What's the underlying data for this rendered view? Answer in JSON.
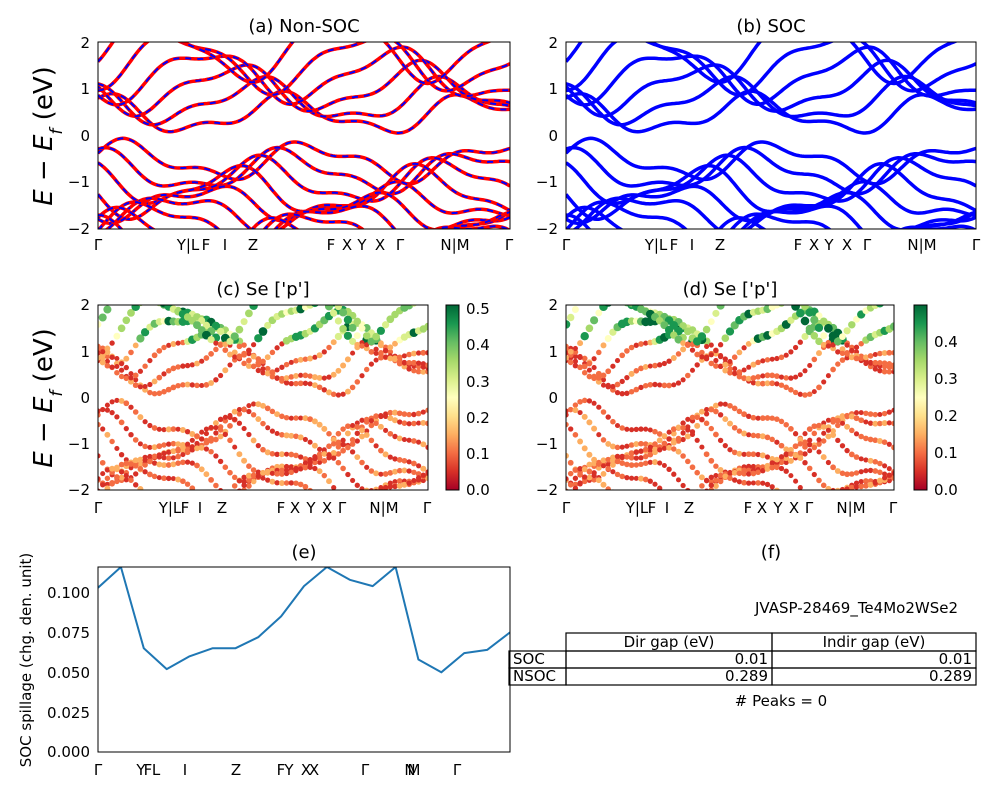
{
  "chart_data": [
    {
      "id": "a",
      "type": "line",
      "title": "(a) Non-SOC",
      "ylabel": "E − E_f (eV)",
      "ylim": [
        -2,
        2
      ],
      "yticks": [
        "2",
        "1",
        "0",
        "−1",
        "−2"
      ],
      "kpath_labels": [
        "Γ",
        "Y|L",
        "F",
        "I",
        "Z",
        "F",
        "X",
        "Y",
        "X",
        "Γ",
        "N|M",
        "Γ"
      ],
      "series": [
        {
          "color": "#ff0000"
        },
        {
          "color": "#0000ff"
        }
      ]
    },
    {
      "id": "b",
      "type": "line",
      "title": "(b) SOC",
      "ylim": [
        -2,
        2
      ],
      "yticks": [
        "2",
        "1",
        "0",
        "−1",
        "−2"
      ],
      "kpath_labels": [
        "Γ",
        "Y|L",
        "F",
        "I",
        "Z",
        "F",
        "X",
        "Y",
        "X",
        "Γ",
        "N|M",
        "Γ"
      ],
      "series": [
        {
          "color": "#0000ff"
        }
      ]
    },
    {
      "id": "c",
      "type": "scatter",
      "title": "(c)  Se ['p']",
      "ylabel": "E − E_f (eV)",
      "ylim": [
        -2,
        2
      ],
      "yticks": [
        "2",
        "1",
        "0",
        "−1",
        "−2"
      ],
      "colorbar": {
        "ticks": [
          "0.5",
          "0.4",
          "0.3",
          "0.2",
          "0.1",
          "0.0"
        ],
        "range": [
          0,
          0.51
        ]
      },
      "kpath_labels": [
        "Γ",
        "Y|L",
        "F",
        "I",
        "Z",
        "F",
        "X",
        "Y",
        "X",
        "Γ",
        "N|M",
        "Γ"
      ]
    },
    {
      "id": "d",
      "type": "scatter",
      "title": "(d) Se ['p']",
      "ylim": [
        -2,
        2
      ],
      "yticks": [
        "2",
        "1",
        "0",
        "−1",
        "−2"
      ],
      "colorbar": {
        "ticks": [
          "0.4",
          "0.3",
          "0.2",
          "0.1",
          "0.0"
        ],
        "range": [
          0,
          0.49
        ]
      },
      "kpath_labels": [
        "Γ",
        "Y|L",
        "F",
        "I",
        "Z",
        "F",
        "X",
        "Y",
        "X",
        "Γ",
        "N|M",
        "Γ"
      ]
    },
    {
      "id": "e",
      "type": "line",
      "title": "(e)",
      "ylabel": "SOC spillage (chg. den. unit)",
      "ylim": [
        0,
        0.116
      ],
      "yticks": [
        "0.100",
        "0.075",
        "0.050",
        "0.025",
        "0.000"
      ],
      "xticks": [
        "Γ",
        "Y",
        "F",
        "L",
        "I",
        "Z",
        "F",
        "Y",
        "X",
        "X",
        "Γ",
        "N",
        "M",
        "Γ"
      ],
      "x": [
        0,
        0.5,
        1,
        1.5,
        2,
        2.5,
        3,
        3.5,
        4,
        4.5,
        5,
        5.5,
        6,
        6.5,
        7,
        7.5,
        8,
        8.5,
        9
      ],
      "values": [
        0.103,
        0.116,
        0.065,
        0.052,
        0.06,
        0.065,
        0.065,
        0.072,
        0.085,
        0.104,
        0.116,
        0.108,
        0.104,
        0.116,
        0.058,
        0.05,
        0.062,
        0.064,
        0.075
      ],
      "series": [
        {
          "color": "#1f77b4"
        }
      ]
    }
  ],
  "panel_f": {
    "title": "(f)",
    "material": "JVASP-28469_Te4Mo2WSe2",
    "headers": [
      "Dir gap (eV)",
      "Indir gap (eV)"
    ],
    "rows": [
      {
        "label": "SOC",
        "dir": "0.01",
        "indir": "0.01"
      },
      {
        "label": "NSOC",
        "dir": "0.289",
        "indir": "0.289"
      }
    ],
    "peaks": "# Peaks = 0"
  }
}
